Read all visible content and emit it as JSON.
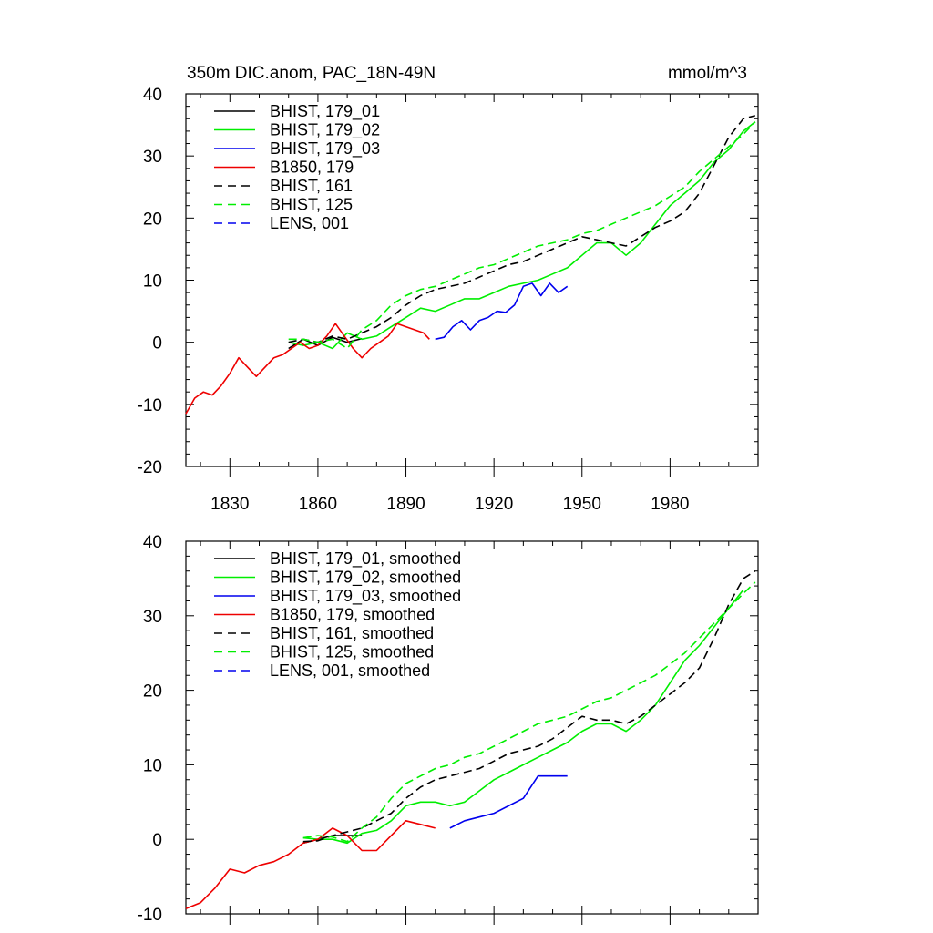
{
  "title_left": "350m DIC.anom, PAC_18N-49N",
  "title_right": "mmol/m^3",
  "chart_data": [
    {
      "type": "line",
      "title": "350m DIC.anom, PAC_18N-49N",
      "units": "mmol/m^3",
      "xlim": [
        1815,
        2010
      ],
      "ylim": [
        -20,
        40
      ],
      "xticks": [
        1830,
        1860,
        1890,
        1920,
        1950,
        1980
      ],
      "yticks": [
        -20,
        -10,
        0,
        10,
        20,
        30,
        40
      ],
      "ytick_labels": [
        "-20",
        "-10",
        "0",
        "10",
        "20",
        "30",
        "40"
      ],
      "xtick_labels": [
        "1830",
        "1860",
        "1890",
        "1920",
        "1950",
        "1980"
      ],
      "legend_position": "top-left",
      "series": [
        {
          "name": "BHIST, 179_01",
          "color": "#000000",
          "dash": "solid",
          "x": [
            1850,
            1855,
            1860,
            1865,
            1870,
            1875
          ],
          "y": [
            -1.0,
            0.5,
            -0.5,
            0.8,
            0.0,
            0.6
          ]
        },
        {
          "name": "BHIST, 179_02",
          "color": "#00ee00",
          "dash": "solid",
          "x": [
            1850,
            1855,
            1860,
            1865,
            1870,
            1875,
            1880,
            1885,
            1890,
            1895,
            1900,
            1905,
            1910,
            1915,
            1920,
            1925,
            1930,
            1935,
            1940,
            1945,
            1950,
            1955,
            1960,
            1965,
            1970,
            1975,
            1980,
            1985,
            1990,
            1995,
            2000,
            2005,
            2009
          ],
          "y": [
            0.0,
            -0.5,
            0.0,
            -1.0,
            1.5,
            0.5,
            1.0,
            2.5,
            4.0,
            5.5,
            5.0,
            6.0,
            7.0,
            7.0,
            8.0,
            9.0,
            9.5,
            10.0,
            11.0,
            12.0,
            14.0,
            16.0,
            16.0,
            14.0,
            16.0,
            19.0,
            22.0,
            24.0,
            26.0,
            29.0,
            31.0,
            34.0,
            35.5
          ]
        },
        {
          "name": "BHIST, 179_03",
          "color": "#0000ee",
          "dash": "solid",
          "x": [
            1900,
            1903,
            1906,
            1909,
            1912,
            1915,
            1918,
            1921,
            1924,
            1927,
            1930,
            1933,
            1936,
            1939,
            1942,
            1945
          ],
          "y": [
            0.5,
            0.8,
            2.5,
            3.5,
            2.0,
            3.5,
            4.0,
            5.0,
            4.8,
            6.0,
            9.0,
            9.5,
            7.5,
            9.5,
            8.0,
            9.0
          ]
        },
        {
          "name": "B1850, 179",
          "color": "#ee0000",
          "dash": "solid",
          "x": [
            1815,
            1818,
            1821,
            1824,
            1827,
            1830,
            1833,
            1836,
            1839,
            1842,
            1845,
            1848,
            1851,
            1854,
            1857,
            1860,
            1863,
            1866,
            1869,
            1872,
            1875,
            1878,
            1881,
            1884,
            1887,
            1890,
            1893,
            1896,
            1898
          ],
          "y": [
            -11.5,
            -9.0,
            -8.0,
            -8.5,
            -7.0,
            -5.0,
            -2.5,
            -4.0,
            -5.5,
            -4.0,
            -2.5,
            -2.0,
            -1.0,
            0.0,
            -1.0,
            -0.5,
            1.0,
            3.0,
            1.0,
            -1.0,
            -2.5,
            -1.0,
            0.0,
            1.0,
            3.0,
            2.5,
            2.0,
            1.5,
            0.5
          ]
        },
        {
          "name": "BHIST, 161",
          "color": "#000000",
          "dash": "dashed",
          "x": [
            1850,
            1855,
            1860,
            1865,
            1870,
            1875,
            1880,
            1885,
            1890,
            1895,
            1900,
            1905,
            1910,
            1915,
            1920,
            1925,
            1930,
            1935,
            1940,
            1945,
            1950,
            1955,
            1960,
            1965,
            1970,
            1975,
            1980,
            1985,
            1990,
            1995,
            2000,
            2005,
            2009
          ],
          "y": [
            0.0,
            0.5,
            0.0,
            1.0,
            0.5,
            1.5,
            2.5,
            4.0,
            6.0,
            7.5,
            8.5,
            9.0,
            9.5,
            10.5,
            11.5,
            12.5,
            13.0,
            14.0,
            15.0,
            16.0,
            17.0,
            16.5,
            16.0,
            15.5,
            17.0,
            18.5,
            19.5,
            21.0,
            24.0,
            28.5,
            33.0,
            36.0,
            36.5
          ]
        },
        {
          "name": "BHIST, 125",
          "color": "#00ee00",
          "dash": "dashed",
          "x": [
            1850,
            1855,
            1860,
            1865,
            1870,
            1875,
            1880,
            1885,
            1890,
            1895,
            1900,
            1905,
            1910,
            1915,
            1920,
            1925,
            1930,
            1935,
            1940,
            1945,
            1950,
            1955,
            1960,
            1965,
            1970,
            1975,
            1980,
            1985,
            1990,
            1995,
            2000,
            2005,
            2009
          ],
          "y": [
            0.5,
            0.5,
            0.0,
            0.5,
            -1.0,
            2.0,
            3.5,
            6.0,
            7.5,
            8.5,
            9.0,
            10.0,
            11.0,
            12.0,
            12.5,
            13.5,
            14.5,
            15.5,
            16.0,
            16.5,
            17.5,
            18.0,
            19.0,
            20.0,
            21.0,
            22.0,
            23.5,
            25.0,
            27.5,
            29.5,
            31.5,
            33.5,
            35.5
          ]
        },
        {
          "name": "LENS, 001",
          "color": "#0000ee",
          "dash": "dashed",
          "x": [],
          "y": []
        }
      ]
    },
    {
      "type": "line",
      "xlim": [
        1815,
        2010
      ],
      "ylim": [
        -10,
        40
      ],
      "xticks": [
        1830,
        1860,
        1890,
        1920,
        1950,
        1980
      ],
      "yticks": [
        -10,
        0,
        10,
        20,
        30,
        40
      ],
      "ytick_labels": [
        "-10",
        "0",
        "10",
        "20",
        "30",
        "40"
      ],
      "legend_position": "top-left",
      "series": [
        {
          "name": "BHIST, 179_01, smoothed",
          "color": "#000000",
          "dash": "solid",
          "x": [
            1855,
            1860,
            1865,
            1870,
            1875
          ],
          "y": [
            -0.5,
            0.0,
            0.5,
            0.5,
            0.5
          ]
        },
        {
          "name": "BHIST, 179_02, smoothed",
          "color": "#00ee00",
          "dash": "solid",
          "x": [
            1855,
            1860,
            1865,
            1870,
            1875,
            1880,
            1885,
            1890,
            1895,
            1900,
            1905,
            1910,
            1915,
            1920,
            1925,
            1930,
            1935,
            1940,
            1945,
            1950,
            1955,
            1960,
            1965,
            1970,
            1975,
            1980,
            1985,
            1990,
            1995,
            2000,
            2005
          ],
          "y": [
            0.2,
            0.0,
            0.0,
            -0.5,
            0.8,
            1.2,
            2.5,
            4.5,
            5.0,
            5.0,
            4.5,
            5.0,
            6.5,
            8.0,
            9.0,
            10.0,
            11.0,
            12.0,
            13.0,
            14.5,
            15.5,
            15.5,
            14.5,
            16.0,
            18.0,
            21.0,
            24.0,
            26.0,
            28.5,
            31.0,
            33.5
          ]
        },
        {
          "name": "BHIST, 179_03, smoothed",
          "color": "#0000ee",
          "dash": "solid",
          "x": [
            1905,
            1910,
            1915,
            1920,
            1925,
            1930,
            1935,
            1940,
            1945
          ],
          "y": [
            1.5,
            2.5,
            3.0,
            3.5,
            4.5,
            5.5,
            8.5,
            8.5,
            8.5
          ]
        },
        {
          "name": "B1850, 179, smoothed",
          "color": "#ee0000",
          "dash": "solid",
          "x": [
            1815,
            1820,
            1825,
            1830,
            1835,
            1840,
            1845,
            1850,
            1855,
            1860,
            1865,
            1870,
            1875,
            1880,
            1885,
            1890,
            1895,
            1900
          ],
          "y": [
            -9.3,
            -8.5,
            -6.5,
            -4.0,
            -4.5,
            -3.5,
            -3.0,
            -2.0,
            -0.5,
            0.0,
            1.5,
            0.5,
            -1.5,
            -1.5,
            0.5,
            2.5,
            2.0,
            1.5
          ]
        },
        {
          "name": "BHIST, 161, smoothed",
          "color": "#000000",
          "dash": "dashed",
          "x": [
            1855,
            1860,
            1865,
            1870,
            1875,
            1880,
            1885,
            1890,
            1895,
            1900,
            1905,
            1910,
            1915,
            1920,
            1925,
            1930,
            1935,
            1940,
            1945,
            1950,
            1955,
            1960,
            1965,
            1970,
            1975,
            1980,
            1985,
            1990,
            1995,
            2000,
            2005,
            2009
          ],
          "y": [
            -0.3,
            -0.2,
            0.5,
            1.0,
            1.5,
            2.5,
            3.5,
            5.5,
            7.0,
            8.0,
            8.5,
            9.0,
            9.5,
            10.5,
            11.5,
            12.0,
            12.5,
            13.5,
            15.0,
            16.5,
            16.0,
            16.0,
            15.5,
            16.5,
            18.0,
            19.5,
            21.0,
            23.0,
            27.0,
            31.5,
            35.0,
            36.0
          ]
        },
        {
          "name": "BHIST, 125, smoothed",
          "color": "#00ee00",
          "dash": "dashed",
          "x": [
            1855,
            1860,
            1865,
            1870,
            1875,
            1880,
            1885,
            1890,
            1895,
            1900,
            1905,
            1910,
            1915,
            1920,
            1925,
            1930,
            1935,
            1940,
            1945,
            1950,
            1955,
            1960,
            1965,
            1970,
            1975,
            1980,
            1985,
            1990,
            1995,
            2000,
            2005,
            2009
          ],
          "y": [
            0.2,
            0.5,
            0.3,
            -0.3,
            1.5,
            3.0,
            5.5,
            7.5,
            8.5,
            9.5,
            10.0,
            11.0,
            11.5,
            12.5,
            13.5,
            14.5,
            15.5,
            16.0,
            16.5,
            17.5,
            18.5,
            19.0,
            20.0,
            21.0,
            22.0,
            23.5,
            25.0,
            27.0,
            29.0,
            31.0,
            33.0,
            34.5
          ]
        },
        {
          "name": "LENS, 001, smoothed",
          "color": "#0000ee",
          "dash": "dashed",
          "x": [],
          "y": []
        }
      ]
    }
  ]
}
